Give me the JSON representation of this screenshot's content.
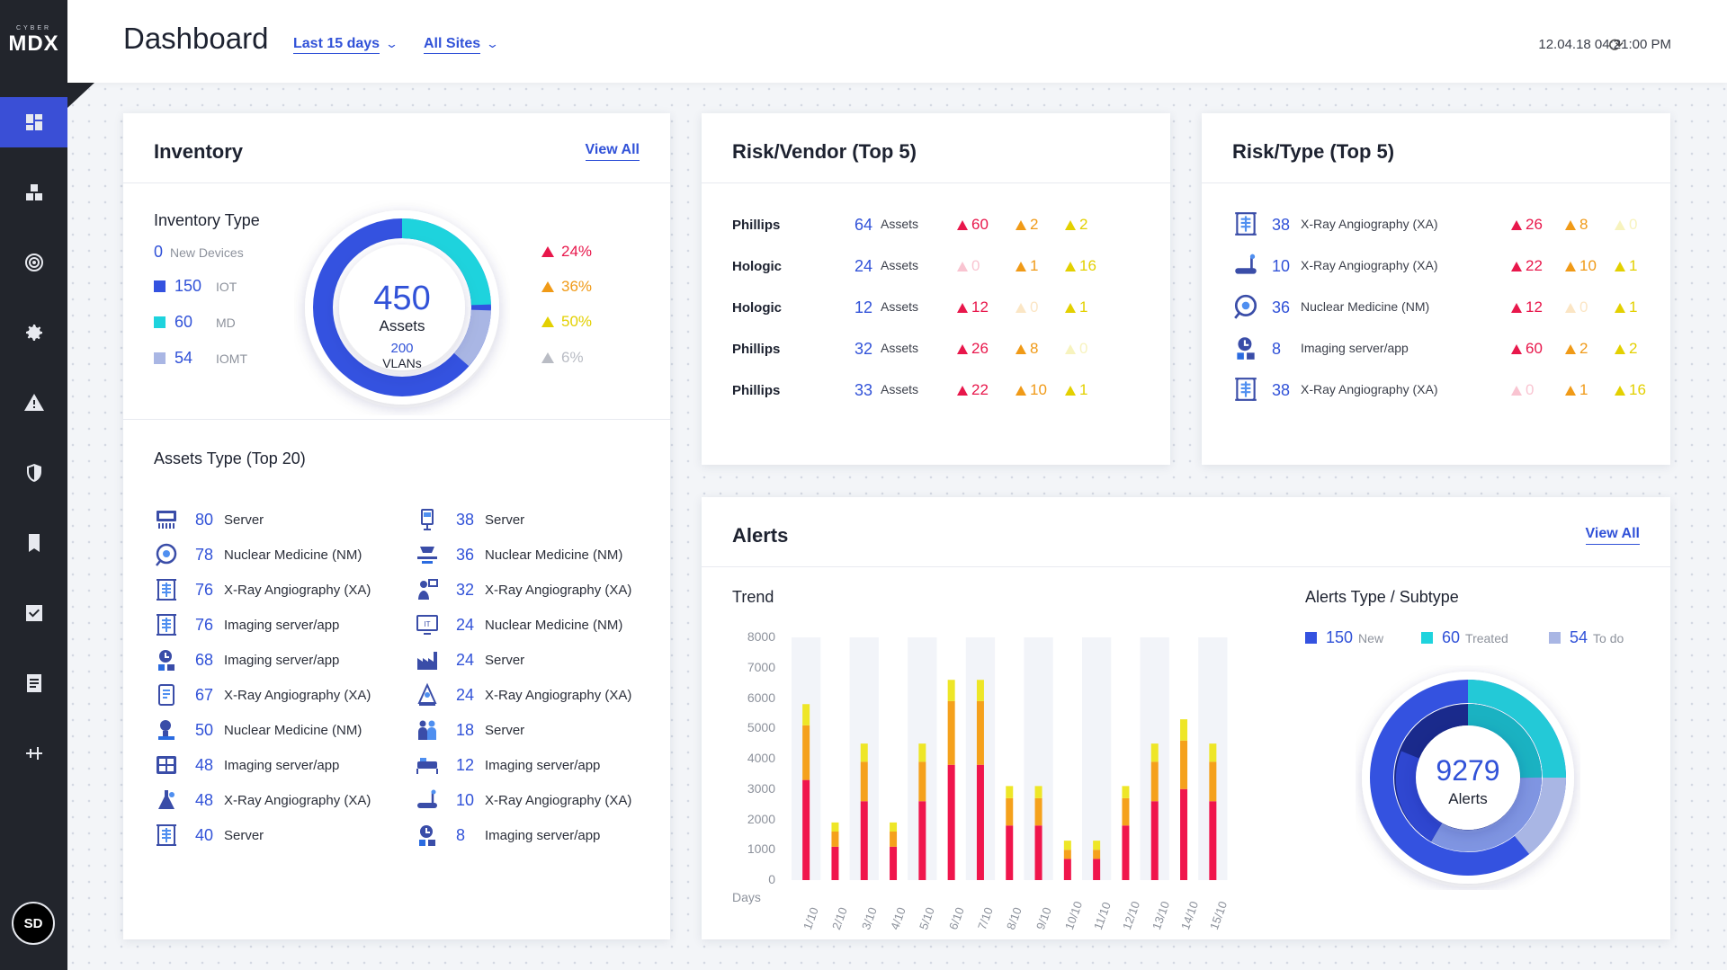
{
  "brand": {
    "small": "CYBER",
    "big": "MDX"
  },
  "header": {
    "title": "Dashboard",
    "filter_period": "Last 15 days",
    "filter_sites": "All Sites",
    "timestamp": "12.04.18 04:21:00 PM"
  },
  "sidebar": {
    "items": [
      "dashboard-icon",
      "devices-icon",
      "radar-icon",
      "settings-icon",
      "warning-icon",
      "shield-icon",
      "bookmark-icon",
      "checkbox-icon",
      "report-icon",
      "sliders-icon"
    ],
    "user_initials": "SD"
  },
  "inventory": {
    "title": "Inventory",
    "view_all": "View All",
    "type_title": "Inventory Type",
    "new_devices_count": "0",
    "new_devices_label": "New Devices",
    "types": [
      {
        "count": "150",
        "label": "IOT",
        "color": "#3452e0"
      },
      {
        "count": "60",
        "label": "MD",
        "color": "#1ed3dd"
      },
      {
        "count": "54",
        "label": "IOMT",
        "color": "#a9b6e4"
      }
    ],
    "donut": {
      "value": "450",
      "label": "Assets",
      "sub_value": "200",
      "sub_label": "VLANs"
    },
    "percentages": [
      {
        "value": "24%",
        "color": "#e8174b"
      },
      {
        "value": "36%",
        "color": "#f09a17"
      },
      {
        "value": "50%",
        "color": "#e3d000"
      },
      {
        "value": "6%",
        "color": "#b9bcc4"
      }
    ],
    "assets_title": "Assets Type (Top 20)",
    "assets_left": [
      {
        "icon": "rs232-icon",
        "count": "80",
        "label": "Server"
      },
      {
        "icon": "nuclear-icon",
        "count": "78",
        "label": "Nuclear Medicine (NM)"
      },
      {
        "icon": "xray-icon",
        "count": "76",
        "label": "X-Ray Angiography (XA)"
      },
      {
        "icon": "xray-icon",
        "count": "76",
        "label": "Imaging server/app"
      },
      {
        "icon": "imaging-icon",
        "count": "68",
        "label": "Imaging server/app"
      },
      {
        "icon": "tablet-icon",
        "count": "67",
        "label": "X-Ray Angiography (XA)"
      },
      {
        "icon": "scanner-icon",
        "count": "50",
        "label": "Nuclear Medicine (NM)"
      },
      {
        "icon": "monitor-grid-icon",
        "count": "48",
        "label": "Imaging server/app"
      },
      {
        "icon": "flask-icon",
        "count": "48",
        "label": "X-Ray Angiography (XA)"
      },
      {
        "icon": "xray-icon",
        "count": "40",
        "label": "Server"
      }
    ],
    "assets_right": [
      {
        "icon": "pump-icon",
        "count": "38",
        "label": "Server"
      },
      {
        "icon": "bed-scan-icon",
        "count": "36",
        "label": "Nuclear Medicine (NM)"
      },
      {
        "icon": "person-monitor-icon",
        "count": "32",
        "label": "X-Ray Angiography (XA)"
      },
      {
        "icon": "it-monitor-icon",
        "count": "24",
        "label": "Nuclear Medicine (NM)"
      },
      {
        "icon": "factory-icon",
        "count": "24",
        "label": "Server"
      },
      {
        "icon": "beam-icon",
        "count": "24",
        "label": "X-Ray Angiography (XA)"
      },
      {
        "icon": "people-icon",
        "count": "18",
        "label": "Server"
      },
      {
        "icon": "bed-icon",
        "count": "12",
        "label": "Imaging server/app"
      },
      {
        "icon": "treadmill-icon",
        "count": "10",
        "label": "X-Ray Angiography (XA)"
      },
      {
        "icon": "imaging-icon",
        "count": "8",
        "label": "Imaging server/app"
      }
    ]
  },
  "risk_vendor": {
    "title": "Risk/Vendor (Top 5)",
    "rows": [
      {
        "name": "Phillips",
        "count": "64",
        "unit": "Assets",
        "high": "60",
        "med": "2",
        "low": "2",
        "high_faded": false,
        "med_faded": false,
        "low_faded": false
      },
      {
        "name": "Hologic",
        "count": "24",
        "unit": "Assets",
        "high": "0",
        "med": "1",
        "low": "16",
        "high_faded": true,
        "med_faded": false,
        "low_faded": false
      },
      {
        "name": "Hologic",
        "count": "12",
        "unit": "Assets",
        "high": "12",
        "med": "0",
        "low": "1",
        "high_faded": false,
        "med_faded": true,
        "low_faded": false
      },
      {
        "name": "Phillips",
        "count": "32",
        "unit": "Assets",
        "high": "26",
        "med": "8",
        "low": "0",
        "high_faded": false,
        "med_faded": false,
        "low_faded": true
      },
      {
        "name": "Phillips",
        "count": "33",
        "unit": "Assets",
        "high": "22",
        "med": "10",
        "low": "1",
        "high_faded": false,
        "med_faded": false,
        "low_faded": false
      }
    ]
  },
  "risk_type": {
    "title": "Risk/Type (Top 5)",
    "rows": [
      {
        "icon": "xray-icon",
        "count": "38",
        "label": "X-Ray Angiography (XA)",
        "high": "26",
        "med": "8",
        "low": "0",
        "high_faded": false,
        "med_faded": false,
        "low_faded": true
      },
      {
        "icon": "treadmill-icon",
        "count": "10",
        "label": "X-Ray Angiography (XA)",
        "high": "22",
        "med": "10",
        "low": "1",
        "high_faded": false,
        "med_faded": false,
        "low_faded": false
      },
      {
        "icon": "nuclear-icon",
        "count": "36",
        "label": "Nuclear Medicine (NM)",
        "high": "12",
        "med": "0",
        "low": "1",
        "high_faded": false,
        "med_faded": true,
        "low_faded": false
      },
      {
        "icon": "imaging-icon",
        "count": "8",
        "label": "Imaging server/app",
        "high": "60",
        "med": "2",
        "low": "2",
        "high_faded": false,
        "med_faded": false,
        "low_faded": false
      },
      {
        "icon": "xray-icon",
        "count": "38",
        "label": "X-Ray Angiography (XA)",
        "high": "0",
        "med": "1",
        "low": "16",
        "high_faded": true,
        "med_faded": false,
        "low_faded": false
      }
    ]
  },
  "alerts": {
    "title": "Alerts",
    "view_all": "View All",
    "trend_title": "Trend",
    "x_axis_label": "Days",
    "subtype_title": "Alerts Type / Subtype",
    "legend": [
      {
        "count": "150",
        "label": "New",
        "color": "#3452e0"
      },
      {
        "count": "60",
        "label": "Treated",
        "color": "#1ed3dd"
      },
      {
        "count": "54",
        "label": "To do",
        "color": "#a9b6e4"
      }
    ],
    "donut": {
      "value": "9279",
      "label": "Alerts"
    }
  },
  "chart_data": {
    "type": "bar",
    "stacked": true,
    "categories": [
      "1/10",
      "2/10",
      "3/10",
      "4/10",
      "5/10",
      "6/10",
      "7/10",
      "8/10",
      "9/10",
      "10/10",
      "11/10",
      "12/10",
      "13/10",
      "14/10",
      "15/10"
    ],
    "series": [
      {
        "color": "#f0154c",
        "values": [
          3300,
          1100,
          2600,
          1100,
          2600,
          3800,
          3800,
          1800,
          1800,
          700,
          700,
          1800,
          2600,
          3000,
          2600
        ]
      },
      {
        "color": "#f5a11c",
        "values": [
          1800,
          500,
          1300,
          500,
          1300,
          2100,
          2100,
          900,
          900,
          300,
          300,
          900,
          1300,
          1600,
          1300
        ]
      },
      {
        "color": "#eee627",
        "values": [
          700,
          300,
          600,
          300,
          600,
          700,
          700,
          400,
          400,
          300,
          300,
          400,
          600,
          700,
          600
        ]
      }
    ],
    "xlabel": "Days",
    "ylabel": "",
    "y_ticks": [
      "8000",
      "7000",
      "6000",
      "5000",
      "4000",
      "3000",
      "2000",
      "1000",
      "0"
    ],
    "ylim": [
      0,
      8000
    ]
  }
}
